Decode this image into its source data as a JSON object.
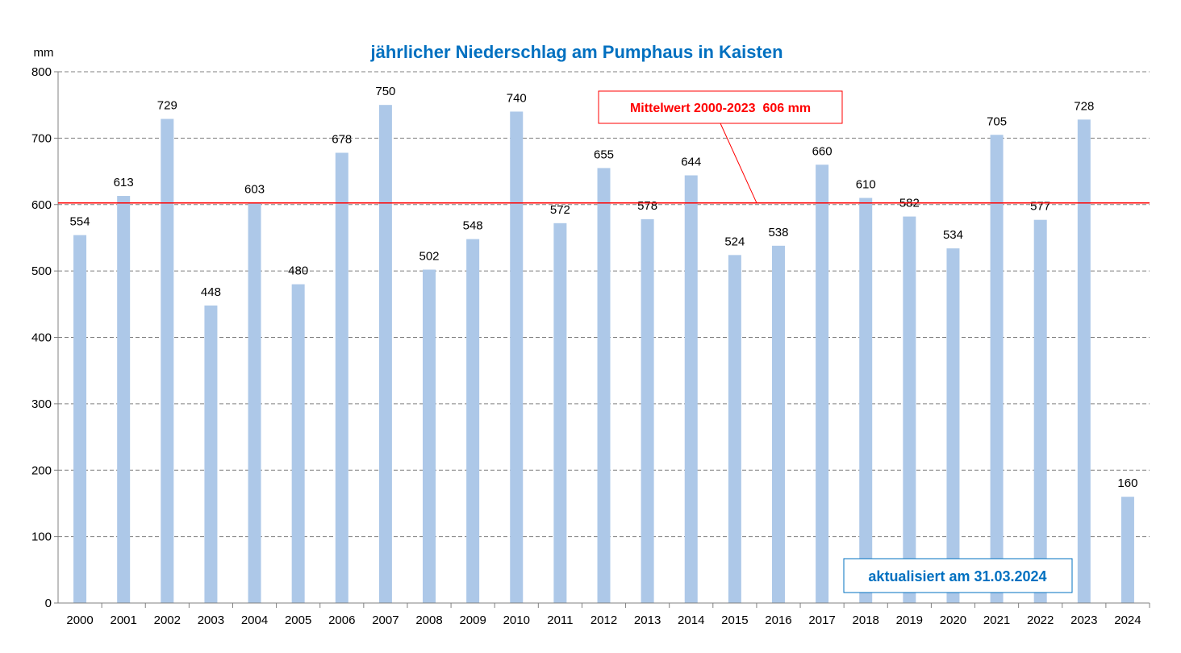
{
  "chart_data": {
    "type": "bar",
    "title": "jährlicher Niederschlag am Pumphaus in Kaisten",
    "ylabel": "mm",
    "xlabel": "",
    "ylim": [
      0,
      800
    ],
    "yticks": [
      0,
      100,
      200,
      300,
      400,
      500,
      600,
      700,
      800
    ],
    "grid": "horizontal dashed",
    "categories": [
      "2000",
      "2001",
      "2002",
      "2003",
      "2004",
      "2005",
      "2006",
      "2007",
      "2008",
      "2009",
      "2010",
      "2011",
      "2012",
      "2013",
      "2014",
      "2015",
      "2016",
      "2017",
      "2018",
      "2019",
      "2020",
      "2021",
      "2022",
      "2023",
      "2024"
    ],
    "values": [
      554,
      613,
      729,
      448,
      603,
      480,
      678,
      750,
      502,
      548,
      740,
      572,
      655,
      578,
      644,
      524,
      538,
      660,
      610,
      582,
      534,
      705,
      577,
      728,
      160
    ],
    "mean_line": {
      "value": 606,
      "label": "Mittelwert 2000-2023  606 mm",
      "color": "#ff0000"
    },
    "annotation": "aktualisiert am 31.03.2024",
    "colors": {
      "bar": "#adc8e8",
      "title": "#0070c0",
      "annotation": "#0070c0",
      "mean": "#ff0000"
    }
  }
}
